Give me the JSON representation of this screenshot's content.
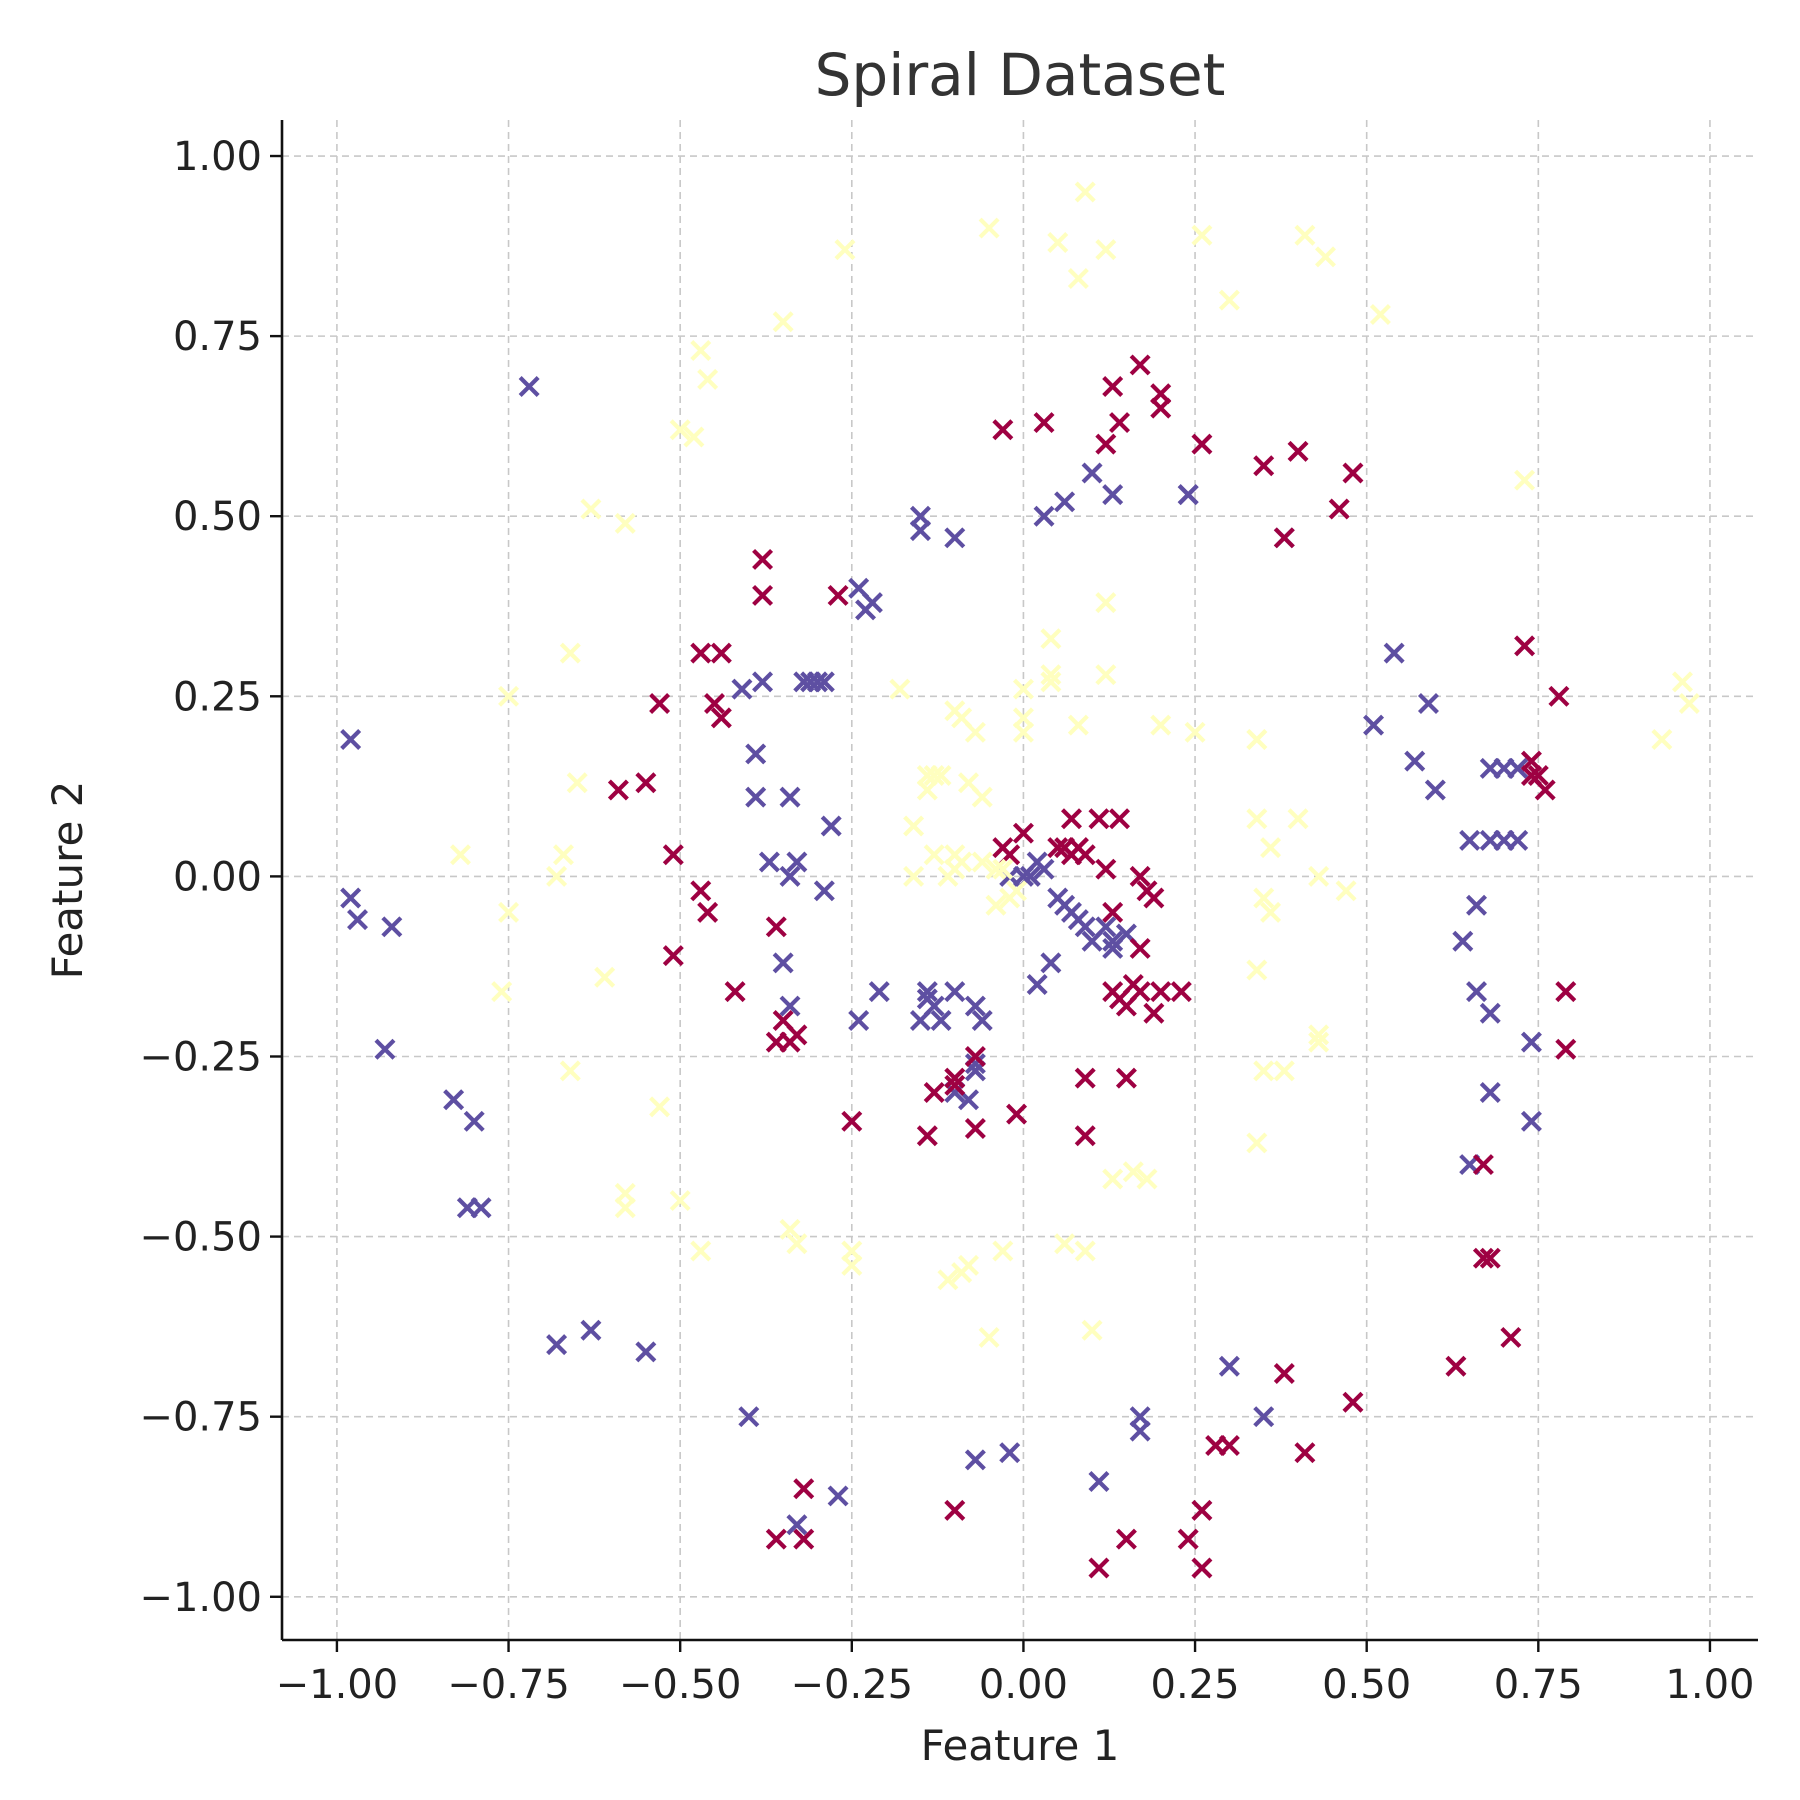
{
  "chart_data": {
    "type": "scatter",
    "title": "Spiral Dataset",
    "xlabel": "Feature 1",
    "ylabel": "Feature 2",
    "xlim": [
      -1.08,
      1.07
    ],
    "ylim": [
      -1.06,
      1.05
    ],
    "xticks": [
      -1.0,
      -0.75,
      -0.5,
      -0.25,
      0.0,
      0.25,
      0.5,
      0.75,
      1.0
    ],
    "xtick_labels": [
      "−1.00",
      "−0.75",
      "−0.50",
      "−0.25",
      "0.00",
      "0.25",
      "0.50",
      "0.75",
      "1.00"
    ],
    "yticks": [
      -1.0,
      -0.75,
      -0.5,
      -0.25,
      0.0,
      0.25,
      0.5,
      0.75,
      1.0
    ],
    "ytick_labels": [
      "−1.00",
      "−0.75",
      "−0.50",
      "−0.25",
      "0.00",
      "0.25",
      "0.50",
      "0.75",
      "1.00"
    ],
    "grid": true,
    "marker": "x",
    "series": [
      {
        "color": "#5e4fa2",
        "x": [
          -0.72,
          -0.98,
          -0.98,
          -0.97,
          -0.92,
          -0.93,
          -0.83,
          -0.8,
          -0.81,
          -0.79,
          -0.68,
          -0.63,
          -0.55,
          -0.4,
          -0.33,
          -0.27,
          -0.41,
          -0.39,
          -0.38,
          -0.32,
          -0.31,
          -0.3,
          -0.29,
          -0.39,
          -0.34,
          -0.37,
          -0.34,
          -0.33,
          -0.28,
          -0.29,
          -0.35,
          -0.34,
          -0.24,
          -0.23,
          -0.22,
          -0.24,
          -0.21,
          -0.15,
          -0.15,
          -0.14,
          -0.13,
          -0.12,
          -0.1,
          -0.06,
          -0.1,
          -0.08,
          -0.07,
          -0.07,
          -0.14,
          -0.15,
          -0.1,
          -0.07,
          -0.02,
          0.0,
          0.01,
          0.02,
          0.03,
          0.02,
          0.04,
          0.05,
          0.06,
          0.07,
          0.08,
          0.09,
          0.1,
          0.12,
          0.13,
          0.13,
          0.15,
          0.03,
          0.06,
          0.1,
          0.13,
          0.24,
          0.24,
          0.38,
          0.54,
          0.51,
          0.57,
          0.59,
          0.6,
          0.68,
          0.7,
          0.72,
          0.65,
          0.68,
          0.7,
          0.72,
          0.66,
          0.64,
          0.66,
          0.68,
          0.74,
          0.68,
          0.74,
          0.65,
          0.3,
          0.35,
          0.17,
          0.17,
          0.11,
          -0.02,
          -0.07
        ],
        "y": [
          0.68,
          0.19,
          -0.03,
          -0.06,
          -0.07,
          -0.24,
          -0.31,
          -0.34,
          -0.46,
          -0.46,
          -0.65,
          -0.63,
          -0.66,
          -0.75,
          -0.9,
          -0.86,
          0.26,
          0.17,
          0.27,
          0.27,
          0.27,
          0.27,
          0.27,
          0.11,
          0.11,
          0.02,
          0.0,
          0.02,
          0.07,
          -0.02,
          -0.12,
          -0.18,
          0.4,
          0.37,
          0.38,
          -0.2,
          -0.16,
          0.5,
          0.48,
          -0.16,
          -0.18,
          -0.2,
          0.47,
          -0.2,
          -0.3,
          -0.31,
          -0.27,
          -0.26,
          -0.17,
          -0.2,
          -0.16,
          -0.18,
          0.0,
          0.0,
          0.0,
          0.02,
          0.01,
          -0.15,
          -0.12,
          -0.03,
          -0.04,
          -0.05,
          -0.06,
          -0.07,
          -0.09,
          -0.07,
          -0.09,
          -0.1,
          -0.08,
          0.5,
          0.52,
          0.56,
          0.53,
          0.53,
          0.53,
          0.47,
          0.31,
          0.21,
          0.16,
          0.24,
          0.12,
          0.15,
          0.15,
          0.15,
          0.05,
          0.05,
          0.05,
          0.05,
          -0.04,
          -0.09,
          -0.16,
          -0.19,
          -0.23,
          -0.3,
          -0.34,
          -0.4,
          -0.68,
          -0.75,
          -0.75,
          -0.77,
          -0.84,
          -0.8,
          -0.81
        ]
      },
      {
        "color": "#9e0142",
        "x": [
          -0.38,
          -0.38,
          -0.27,
          -0.47,
          -0.44,
          -0.45,
          -0.44,
          -0.53,
          -0.59,
          -0.55,
          -0.51,
          -0.47,
          -0.46,
          -0.51,
          -0.42,
          -0.36,
          -0.36,
          -0.34,
          -0.33,
          -0.35,
          -0.25,
          -0.14,
          -0.13,
          -0.1,
          -0.1,
          -0.07,
          -0.07,
          -0.01,
          -0.03,
          0.0,
          -0.02,
          0.05,
          0.07,
          0.08,
          0.09,
          0.11,
          0.12,
          0.14,
          0.06,
          0.07,
          0.08,
          0.13,
          0.13,
          0.17,
          0.18,
          0.19,
          0.17,
          0.14,
          0.15,
          0.16,
          0.17,
          0.2,
          0.23,
          0.19,
          0.09,
          0.09,
          0.15,
          -0.03,
          0.03,
          0.12,
          0.13,
          0.14,
          0.17,
          0.2,
          0.2,
          0.26,
          0.35,
          0.4,
          0.48,
          0.46,
          0.38,
          0.73,
          0.78,
          0.74,
          0.75,
          0.76,
          0.74,
          0.79,
          0.79,
          0.67,
          0.67,
          0.68,
          0.71,
          0.63,
          0.48,
          0.41,
          0.38,
          0.3,
          0.28,
          0.26,
          0.24,
          0.26,
          0.15,
          0.11,
          -0.1,
          -0.32,
          -0.32,
          -0.36
        ],
        "y": [
          0.44,
          0.39,
          0.39,
          0.31,
          0.31,
          0.24,
          0.22,
          0.24,
          0.12,
          0.13,
          0.03,
          -0.02,
          -0.05,
          -0.11,
          -0.16,
          -0.07,
          -0.23,
          -0.23,
          -0.22,
          -0.2,
          -0.34,
          -0.36,
          -0.3,
          -0.29,
          -0.28,
          -0.25,
          -0.35,
          -0.33,
          0.04,
          0.06,
          0.03,
          0.04,
          0.08,
          0.04,
          0.03,
          0.08,
          0.01,
          0.08,
          0.04,
          0.03,
          0.04,
          -0.05,
          -0.16,
          0.0,
          -0.02,
          -0.03,
          -0.1,
          -0.17,
          -0.18,
          -0.15,
          -0.16,
          -0.16,
          -0.16,
          -0.19,
          -0.28,
          -0.36,
          -0.28,
          0.62,
          0.63,
          0.6,
          0.68,
          0.63,
          0.71,
          0.67,
          0.65,
          0.6,
          0.57,
          0.59,
          0.56,
          0.51,
          0.47,
          0.32,
          0.25,
          0.16,
          0.14,
          0.12,
          0.14,
          -0.16,
          -0.24,
          -0.4,
          -0.53,
          -0.53,
          -0.64,
          -0.68,
          -0.73,
          -0.8,
          -0.69,
          -0.79,
          -0.79,
          -0.88,
          -0.92,
          -0.96,
          -0.92,
          -0.96,
          -0.88,
          -0.85,
          -0.92,
          -0.92
        ]
      },
      {
        "color": "#ffffbf",
        "x": [
          0.09,
          -0.26,
          -0.05,
          0.05,
          0.12,
          0.08,
          0.26,
          0.3,
          0.41,
          0.44,
          0.52,
          -0.35,
          -0.47,
          -0.46,
          -0.5,
          -0.48,
          -0.63,
          -0.58,
          -0.66,
          -0.75,
          -0.65,
          -0.82,
          -0.67,
          -0.68,
          -0.75,
          -0.76,
          -0.61,
          -0.66,
          -0.53,
          -0.58,
          -0.58,
          -0.5,
          -0.47,
          -0.34,
          -0.33,
          -0.25,
          -0.25,
          -0.11,
          -0.09,
          -0.08,
          -0.03,
          -0.05,
          0.06,
          0.09,
          0.1,
          0.13,
          0.18,
          0.16,
          0.34,
          0.35,
          0.38,
          0.43,
          0.43,
          0.34,
          0.35,
          0.36,
          0.34,
          0.43,
          0.47,
          0.4,
          0.34,
          0.36,
          0.73,
          0.93,
          0.96,
          0.97,
          0.12,
          0.04,
          0.04,
          0.04,
          0.12,
          0.08,
          0.2,
          0.25,
          0.34,
          -0.18,
          -0.1,
          -0.09,
          -0.07,
          -0.16,
          -0.13,
          -0.1,
          -0.1,
          -0.13,
          -0.16,
          -0.11,
          -0.09,
          -0.06,
          -0.04,
          -0.03,
          -0.02,
          0.0,
          0.0,
          0.0,
          -0.14,
          -0.14,
          -0.12,
          -0.08,
          -0.06,
          -0.04,
          -0.01
        ],
        "y": [
          0.95,
          0.87,
          0.9,
          0.88,
          0.87,
          0.83,
          0.89,
          0.8,
          0.89,
          0.86,
          0.78,
          0.77,
          0.73,
          0.69,
          0.62,
          0.61,
          0.51,
          0.49,
          0.31,
          0.25,
          0.13,
          0.03,
          0.03,
          0.0,
          -0.05,
          -0.16,
          -0.14,
          -0.27,
          -0.32,
          -0.44,
          -0.46,
          -0.45,
          -0.52,
          -0.49,
          -0.51,
          -0.52,
          -0.54,
          -0.56,
          -0.55,
          -0.54,
          -0.52,
          -0.64,
          -0.51,
          -0.52,
          -0.63,
          -0.42,
          -0.42,
          -0.41,
          -0.37,
          -0.27,
          -0.27,
          -0.22,
          -0.23,
          -0.13,
          -0.03,
          0.04,
          0.08,
          0.0,
          -0.02,
          0.08,
          0.19,
          -0.05,
          0.55,
          0.19,
          0.27,
          0.24,
          0.38,
          0.33,
          0.27,
          0.28,
          0.28,
          0.21,
          0.21,
          0.2,
          0.19,
          0.26,
          0.23,
          0.22,
          0.2,
          0.07,
          0.03,
          0.01,
          0.03,
          0.14,
          0.0,
          0.0,
          0.02,
          0.02,
          0.01,
          0.01,
          -0.03,
          0.26,
          0.22,
          0.2,
          0.14,
          0.12,
          0.14,
          0.13,
          0.11,
          -0.04,
          -0.02
        ]
      }
    ]
  }
}
